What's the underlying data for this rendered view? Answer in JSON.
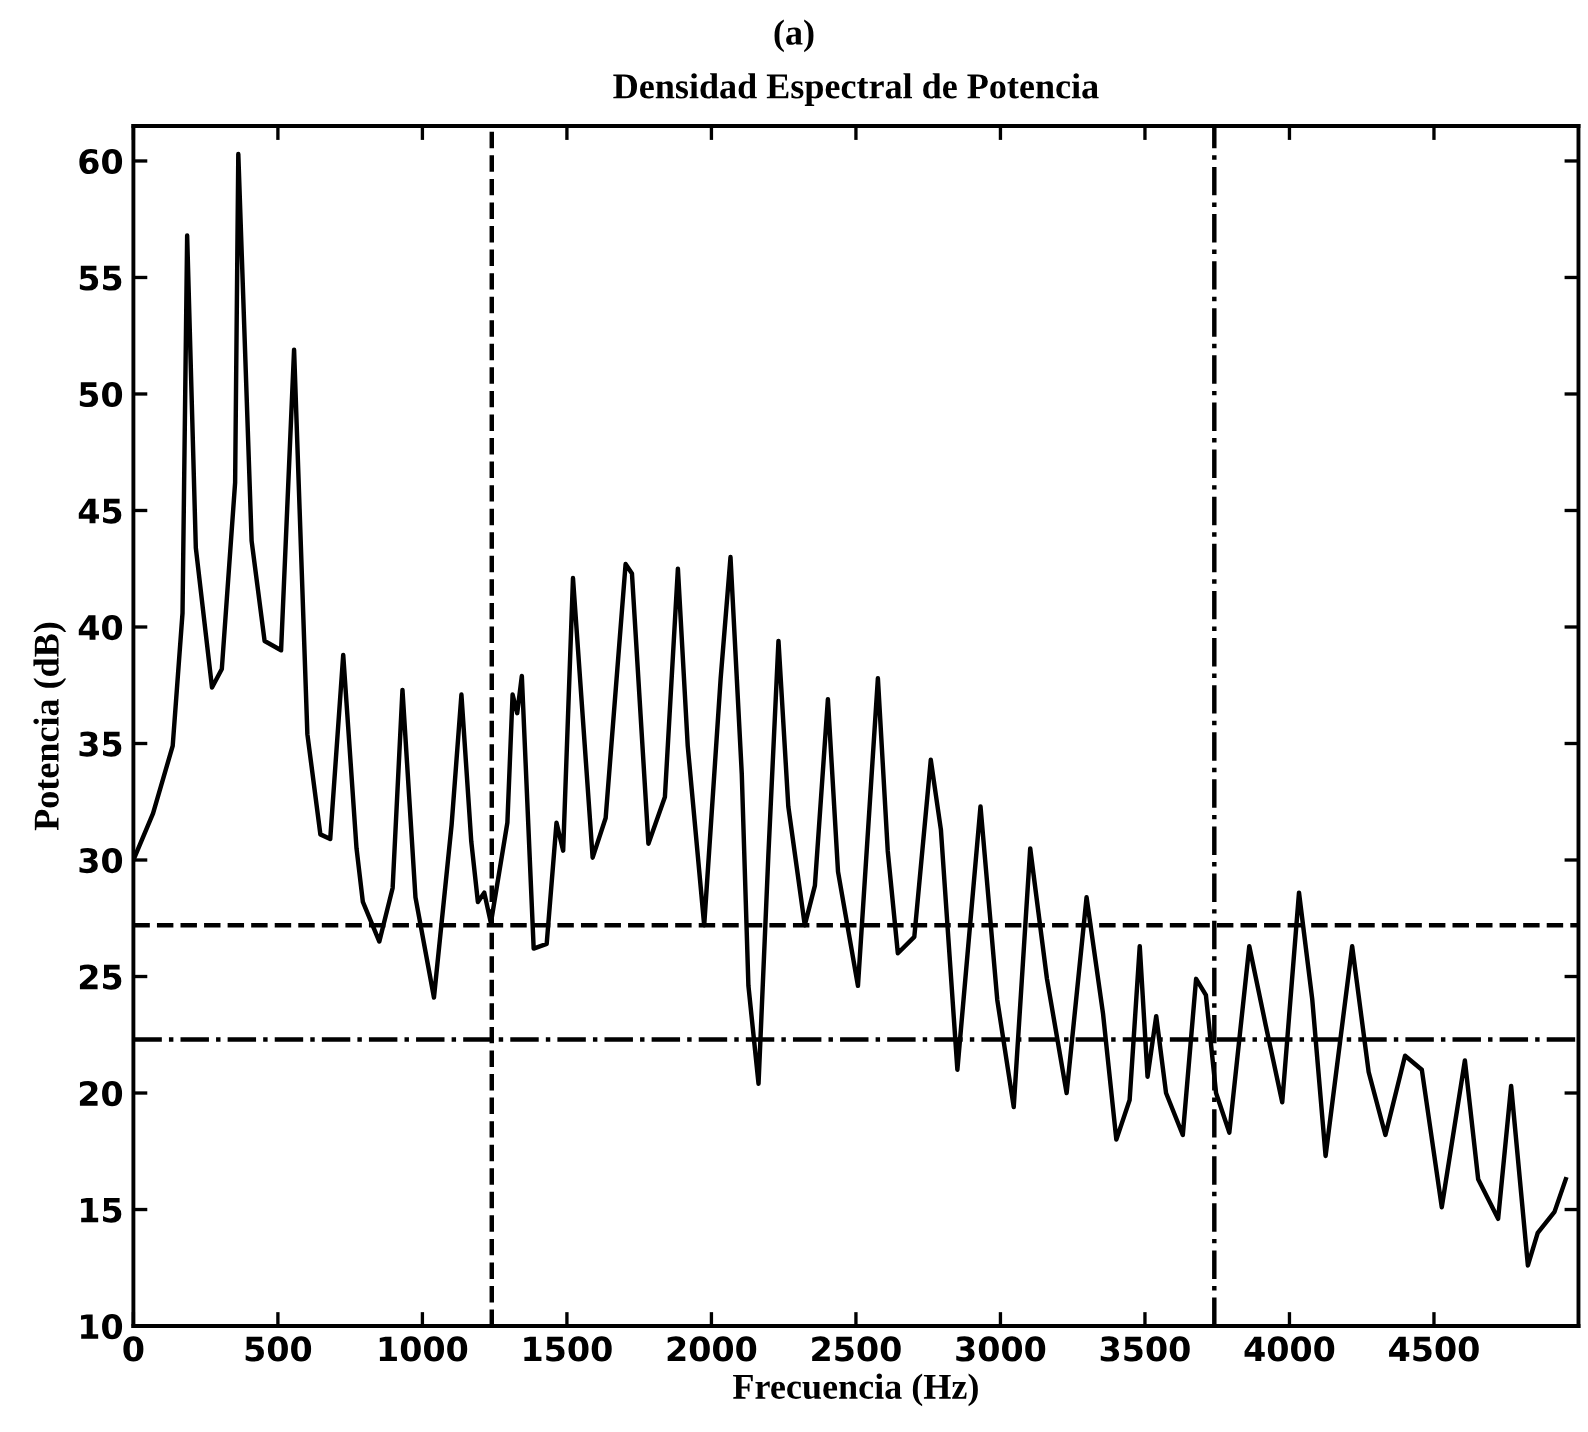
{
  "chart_data": {
    "type": "line",
    "title": "Densidad Espectral de Potencia",
    "annotations": [
      "(a)"
    ],
    "xlabel": "Frecuencia (Hz)",
    "ylabel": "Potencia (dB)",
    "xlim": [
      0,
      5000
    ],
    "ylim": [
      10,
      61.5
    ],
    "xticks": [
      0,
      500,
      1000,
      1500,
      2000,
      2500,
      3000,
      3500,
      4000,
      4500
    ],
    "yticks": [
      10,
      15,
      20,
      25,
      30,
      35,
      40,
      45,
      50,
      55,
      60
    ],
    "grid": false,
    "legend": false,
    "marker": "none",
    "line_style": "solid",
    "series": [
      {
        "color": "#000000",
        "x": [
          0,
          68,
          136,
          170,
          186,
          216,
          272,
          306,
          352,
          363,
          409,
          454,
          511,
          556,
          602,
          647,
          681,
          726,
          772,
          794,
          851,
          897,
          931,
          976,
          1040,
          1101,
          1135,
          1169,
          1192,
          1214,
          1237,
          1294,
          1312,
          1328,
          1344,
          1385,
          1430,
          1464,
          1487,
          1521,
          1589,
          1634,
          1703,
          1725,
          1782,
          1839,
          1884,
          1918,
          1975,
          2032,
          2066,
          2105,
          2128,
          2163,
          2197,
          2232,
          2266,
          2323,
          2358,
          2403,
          2438,
          2507,
          2576,
          2610,
          2645,
          2702,
          2759,
          2794,
          2851,
          2931,
          2989,
          3046,
          3103,
          3161,
          3229,
          3298,
          3355,
          3401,
          3447,
          3482,
          3509,
          3539,
          3573,
          3631,
          3677,
          3711,
          3746,
          3792,
          3861,
          3918,
          3975,
          4033,
          4079,
          4125,
          4217,
          4274,
          4332,
          4400,
          4458,
          4527,
          4607,
          4653,
          4722,
          4767,
          4825,
          4859,
          4917,
          4956
        ],
        "values": [
          30.0,
          32.0,
          34.9,
          40.6,
          56.8,
          43.4,
          37.4,
          38.2,
          46.2,
          60.3,
          43.7,
          39.4,
          39.0,
          51.9,
          35.4,
          31.1,
          30.9,
          38.8,
          30.5,
          28.2,
          26.5,
          28.8,
          37.3,
          28.4,
          24.1,
          31.5,
          37.1,
          30.8,
          28.2,
          28.6,
          27.3,
          31.6,
          37.1,
          36.3,
          37.9,
          26.2,
          26.4,
          31.6,
          30.4,
          42.1,
          30.1,
          31.8,
          42.7,
          42.3,
          30.7,
          32.7,
          42.5,
          34.9,
          27.2,
          37.8,
          43.0,
          33.7,
          24.6,
          20.4,
          30.2,
          39.4,
          32.3,
          27.2,
          28.9,
          36.9,
          29.5,
          24.6,
          37.8,
          30.4,
          26.0,
          26.7,
          34.3,
          31.3,
          21.0,
          32.3,
          24.0,
          19.4,
          30.5,
          24.9,
          20.0,
          28.4,
          23.4,
          18.0,
          19.7,
          26.3,
          20.7,
          23.3,
          20.0,
          18.2,
          24.9,
          24.2,
          20.0,
          18.3,
          26.3,
          22.9,
          19.6,
          28.6,
          24.0,
          17.3,
          26.3,
          20.9,
          18.2,
          21.6,
          21.0,
          15.1,
          21.4,
          16.3,
          14.6,
          20.3,
          12.6,
          14.0,
          14.9,
          16.3
        ]
      }
    ],
    "ref_lines": [
      {
        "axis": "x",
        "value": 1240,
        "color": "#000000",
        "line_style": "dashed"
      },
      {
        "axis": "x",
        "value": 3740,
        "color": "#000000",
        "line_style": "dashdot"
      },
      {
        "axis": "y",
        "value": 27.2,
        "color": "#000000",
        "line_style": "dashed"
      },
      {
        "axis": "y",
        "value": 22.3,
        "color": "#000000",
        "line_style": "dashdot"
      }
    ]
  }
}
